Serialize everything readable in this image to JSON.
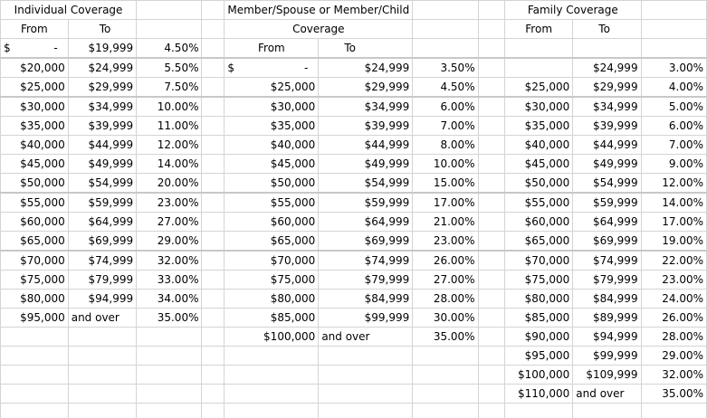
{
  "headers": {
    "individual": "Individual Coverage",
    "member_line1": "Member/Spouse or Member/Child",
    "member_line2": "Coverage",
    "family": "Family Coverage",
    "from": "From",
    "to": "To"
  },
  "individual": [
    {
      "from": "$",
      "from_dash": "-",
      "to": "$19,999",
      "rate": "4.50%"
    },
    {
      "from": "$20,000",
      "to": "$24,999",
      "rate": "5.50%"
    },
    {
      "from": "$25,000",
      "to": "$29,999",
      "rate": "7.50%"
    },
    {
      "from": "$30,000",
      "to": "$34,999",
      "rate": "10.00%"
    },
    {
      "from": "$35,000",
      "to": "$39,999",
      "rate": "11.00%"
    },
    {
      "from": "$40,000",
      "to": "$44,999",
      "rate": "12.00%"
    },
    {
      "from": "$45,000",
      "to": "$49,999",
      "rate": "14.00%"
    },
    {
      "from": "$50,000",
      "to": "$54,999",
      "rate": "20.00%"
    },
    {
      "from": "$55,000",
      "to": "$59,999",
      "rate": "23.00%"
    },
    {
      "from": "$60,000",
      "to": "$64,999",
      "rate": "27.00%"
    },
    {
      "from": "$65,000",
      "to": "$69,999",
      "rate": "29.00%"
    },
    {
      "from": "$70,000",
      "to": "$74,999",
      "rate": "32.00%"
    },
    {
      "from": "$75,000",
      "to": "$79,999",
      "rate": "33.00%"
    },
    {
      "from": "$80,000",
      "to": "$94,999",
      "rate": "34.00%"
    },
    {
      "from": "$95,000",
      "to": "and over",
      "rate": "35.00%"
    }
  ],
  "member": [
    {
      "from": "$",
      "from_dash": "-",
      "to": "$24,999",
      "rate": "3.50%"
    },
    {
      "from": "$25,000",
      "to": "$29,999",
      "rate": "4.50%"
    },
    {
      "from": "$30,000",
      "to": "$34,999",
      "rate": "6.00%"
    },
    {
      "from": "$35,000",
      "to": "$39,999",
      "rate": "7.00%"
    },
    {
      "from": "$40,000",
      "to": "$44,999",
      "rate": "8.00%"
    },
    {
      "from": "$45,000",
      "to": "$49,999",
      "rate": "10.00%"
    },
    {
      "from": "$50,000",
      "to": "$54,999",
      "rate": "15.00%"
    },
    {
      "from": "$55,000",
      "to": "$59,999",
      "rate": "17.00%"
    },
    {
      "from": "$60,000",
      "to": "$64,999",
      "rate": "21.00%"
    },
    {
      "from": "$65,000",
      "to": "$69,999",
      "rate": "23.00%"
    },
    {
      "from": "$70,000",
      "to": "$74,999",
      "rate": "26.00%"
    },
    {
      "from": "$75,000",
      "to": "$79,999",
      "rate": "27.00%"
    },
    {
      "from": "$80,000",
      "to": "$84,999",
      "rate": "28.00%"
    },
    {
      "from": "$85,000",
      "to": "$99,999",
      "rate": "30.00%"
    },
    {
      "from": "$100,000",
      "to": "and over",
      "rate": "35.00%"
    }
  ],
  "family": [
    {
      "from": "",
      "to": "$24,999",
      "rate": "3.00%"
    },
    {
      "from": "$25,000",
      "to": "$29,999",
      "rate": "4.00%"
    },
    {
      "from": "$30,000",
      "to": "$34,999",
      "rate": "5.00%"
    },
    {
      "from": "$35,000",
      "to": "$39,999",
      "rate": "6.00%"
    },
    {
      "from": "$40,000",
      "to": "$44,999",
      "rate": "7.00%"
    },
    {
      "from": "$45,000",
      "to": "$49,999",
      "rate": "9.00%"
    },
    {
      "from": "$50,000",
      "to": "$54,999",
      "rate": "12.00%"
    },
    {
      "from": "$55,000",
      "to": "$59,999",
      "rate": "14.00%"
    },
    {
      "from": "$60,000",
      "to": "$64,999",
      "rate": "17.00%"
    },
    {
      "from": "$65,000",
      "to": "$69,999",
      "rate": "19.00%"
    },
    {
      "from": "$70,000",
      "to": "$74,999",
      "rate": "22.00%"
    },
    {
      "from": "$75,000",
      "to": "$79,999",
      "rate": "23.00%"
    },
    {
      "from": "$80,000",
      "to": "$84,999",
      "rate": "24.00%"
    },
    {
      "from": "$85,000",
      "to": "$89,999",
      "rate": "26.00%"
    },
    {
      "from": "$90,000",
      "to": "$94,999",
      "rate": "28.00%"
    },
    {
      "from": "$95,000",
      "to": "$99,999",
      "rate": "29.00%"
    },
    {
      "from": "$100,000",
      "to": "$109,999",
      "rate": "32.00%"
    },
    {
      "from": "$110,000",
      "to": "and over",
      "rate": "35.00%"
    }
  ]
}
